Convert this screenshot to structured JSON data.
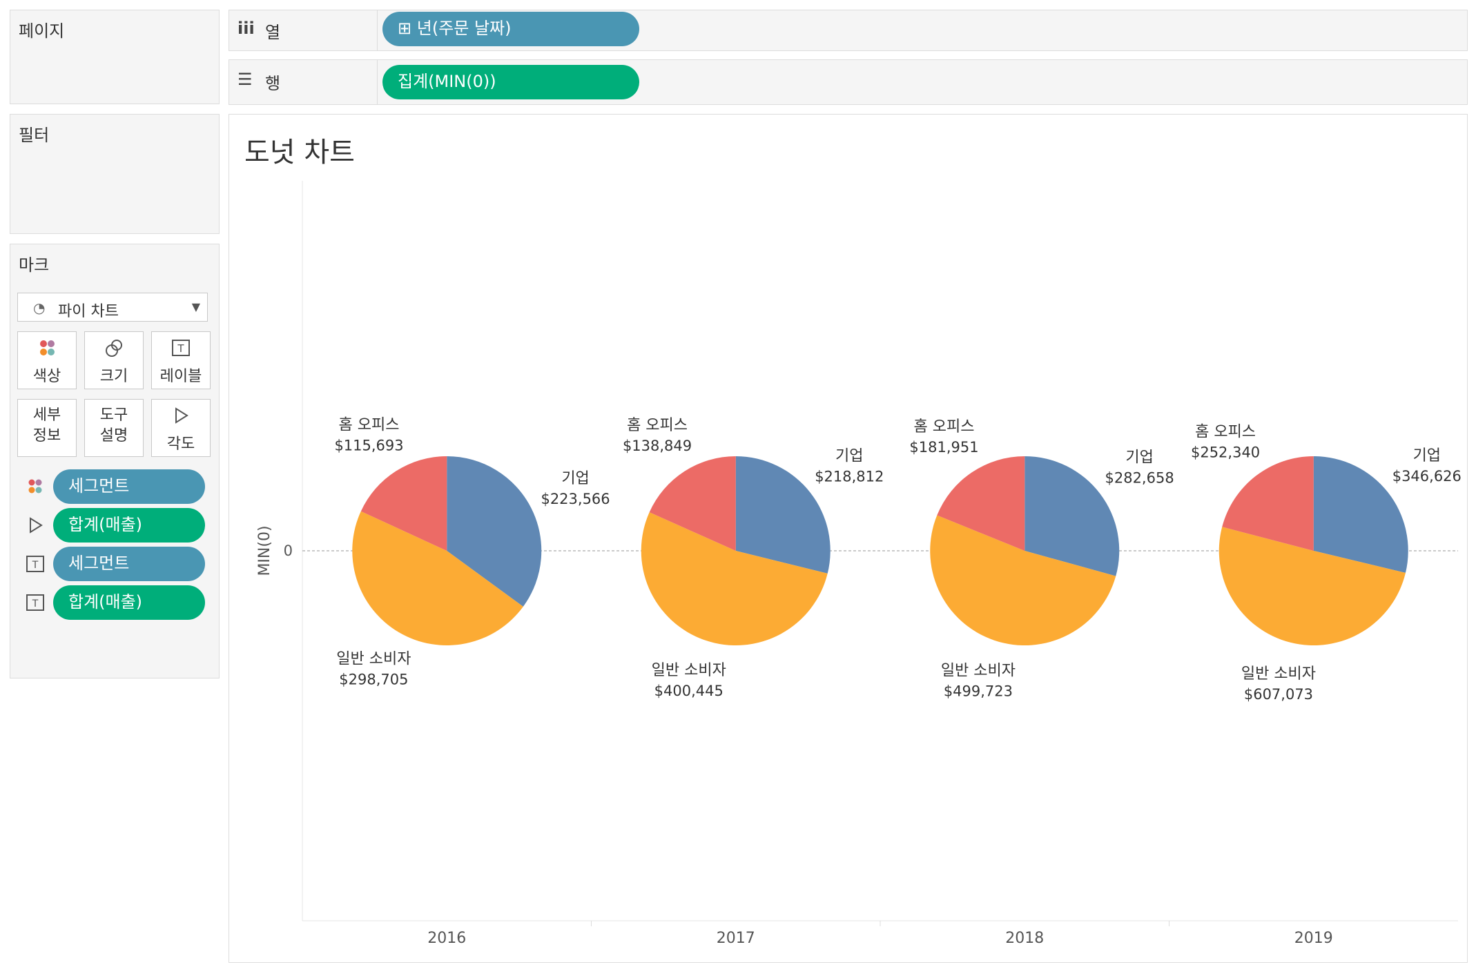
{
  "sidebar": {
    "pages_title": "페이지",
    "filters_title": "필터",
    "marks": {
      "title": "마크",
      "mark_type": "파이 차트",
      "buttons": [
        {
          "label": "색상",
          "icon": "color-dots-icon"
        },
        {
          "label": "크기",
          "icon": "size-icon"
        },
        {
          "label": "레이블",
          "icon": "label-icon"
        },
        {
          "label": "세부\n정보",
          "icon": "detail-icon"
        },
        {
          "label": "도구\n설명",
          "icon": "tooltip-icon"
        },
        {
          "label": "각도",
          "icon": "angle-icon"
        }
      ],
      "detail_line1": "세부",
      "detail_line2": "정보",
      "tooltip_line1": "도구",
      "tooltip_line2": "설명",
      "encodings": [
        {
          "type": "color",
          "field": "세그먼트",
          "color": "#4a96b3"
        },
        {
          "type": "angle",
          "field": "합계(매출)",
          "color": "#00ae7a"
        },
        {
          "type": "label",
          "field": "세그먼트",
          "color": "#4a96b3"
        },
        {
          "type": "label",
          "field": "합계(매출)",
          "color": "#00ae7a"
        }
      ]
    }
  },
  "shelves": {
    "columns": {
      "icon": "columns-icon",
      "label": "열",
      "pill": "년(주문 날짜)",
      "pill_prefix": "⊞"
    },
    "rows": {
      "icon": "rows-icon",
      "label": "행",
      "pill": "집계(MIN(0))"
    }
  },
  "view": {
    "title": "도넛 차트",
    "y_axis_label": "MIN(0)",
    "y_tick": "0"
  },
  "colors": {
    "corporate": "#6088b4",
    "consumer": "#fcab34",
    "home_office": "#ec6b66",
    "pill_blue": "#4a96b3",
    "pill_green": "#00ae7a"
  },
  "chart_data": {
    "type": "pie",
    "title": "도넛 차트",
    "ylabel": "MIN(0)",
    "categories": [
      "2016",
      "2017",
      "2018",
      "2019"
    ],
    "series": [
      {
        "name": "기업",
        "color": "#6088b4",
        "values": [
          223566,
          218812,
          282658,
          346626
        ],
        "labels": [
          "$223,566",
          "$218,812",
          "$282,658",
          "$346,626"
        ]
      },
      {
        "name": "일반 소비자",
        "color": "#fcab34",
        "values": [
          298705,
          400445,
          499723,
          607073
        ],
        "labels": [
          "$298,705",
          "$400,445",
          "$499,723",
          "$607,073"
        ]
      },
      {
        "name": "홈 오피스",
        "color": "#ec6b66",
        "values": [
          115693,
          138849,
          181951,
          252340
        ],
        "labels": [
          "$115,693",
          "$138,849",
          "$181,951",
          "$252,340"
        ]
      }
    ]
  }
}
